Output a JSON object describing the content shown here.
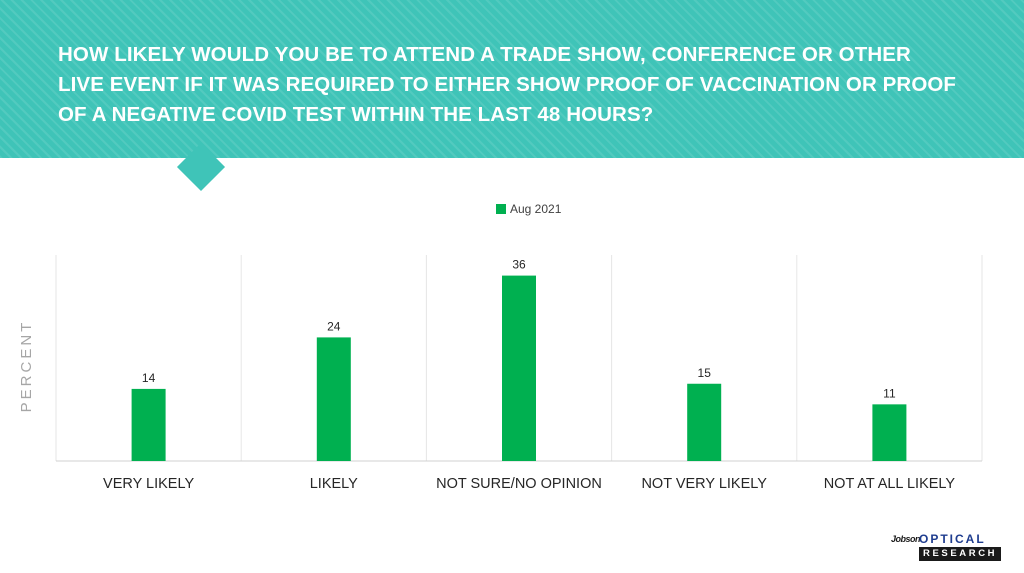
{
  "slide": {
    "title": "HOW LIKELY WOULD YOU BE TO ATTEND A TRADE SHOW, CONFERENCE OR OTHER LIVE EVENT IF IT WAS REQUIRED TO EITHER SHOW PROOF OF VACCINATION OR PROOF OF A NEGATIVE COVID TEST WITHIN THE LAST 48 HOURS?",
    "header_color": "#3fc4b8"
  },
  "logo": {
    "brand": "Jobson",
    "top_text": "OPTICAL",
    "bottom_text": "RESEARCH"
  },
  "chart_data": {
    "type": "bar",
    "title": "",
    "xlabel": "",
    "ylabel": "PERCENT",
    "categories": [
      "VERY LIKELY",
      "LIKELY",
      "NOT SURE/NO OPINION",
      "NOT VERY LIKELY",
      "NOT AT ALL LIKELY"
    ],
    "series": [
      {
        "name": "Aug 2021",
        "values": [
          14,
          24,
          36,
          15,
          11
        ],
        "color": "#00b050"
      }
    ],
    "ylim": [
      0,
      40
    ],
    "data_labels": true,
    "grid": false,
    "category_dividers": true,
    "legend": "top-center"
  }
}
